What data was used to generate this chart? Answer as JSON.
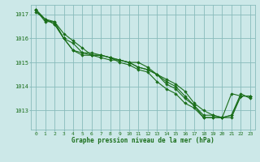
{
  "xlabel": "Graphe pression niveau de la mer (hPa)",
  "x": [
    0,
    1,
    2,
    3,
    4,
    5,
    6,
    7,
    8,
    9,
    10,
    11,
    12,
    13,
    14,
    15,
    16,
    17,
    18,
    19,
    20,
    21,
    22,
    23
  ],
  "series": [
    [
      1017.2,
      1016.8,
      1016.7,
      1016.2,
      1015.9,
      1015.6,
      1015.3,
      1015.2,
      1015.1,
      1015.1,
      1015.0,
      1014.8,
      1014.7,
      1014.5,
      1014.2,
      1014.0,
      1013.6,
      1013.2,
      1012.8,
      1012.8,
      1012.7,
      1013.7,
      1013.6,
      1013.6
    ],
    [
      1017.2,
      1016.7,
      1016.7,
      1016.0,
      1015.5,
      1015.3,
      1015.3,
      1015.3,
      1015.2,
      1015.1,
      1015.0,
      1015.0,
      1014.8,
      1014.5,
      1014.3,
      1014.1,
      1013.8,
      1013.3,
      1013.0,
      1012.8,
      1012.7,
      1012.7,
      1013.6,
      1013.6
    ],
    [
      1017.1,
      1016.8,
      1016.6,
      1016.0,
      1015.8,
      1015.4,
      1015.4,
      1015.3,
      1015.2,
      1015.0,
      1014.9,
      1014.7,
      1014.6,
      1014.2,
      1013.9,
      1013.7,
      1013.3,
      1013.1,
      1012.7,
      1012.7,
      1012.7,
      1012.8,
      1013.7,
      1013.5
    ],
    [
      1017.2,
      1016.8,
      1016.6,
      1016.0,
      1015.5,
      1015.4,
      1015.3,
      1015.3,
      1015.2,
      1015.1,
      1015.0,
      1014.8,
      1014.7,
      1014.5,
      1014.1,
      1013.9,
      1013.5,
      1013.2,
      1012.7,
      1012.7,
      1012.7,
      1012.8,
      1013.6,
      1013.6
    ]
  ],
  "line_color": "#1a6e1a",
  "marker_color": "#1a6e1a",
  "bg_color": "#cce8e8",
  "grid_color": "#88bbbb",
  "text_color": "#1a6e1a",
  "ylim": [
    1012.2,
    1017.4
  ],
  "yticks": [
    1013,
    1014,
    1015,
    1016,
    1017
  ],
  "marker": "D",
  "markersize": 1.8,
  "linewidth": 0.8
}
